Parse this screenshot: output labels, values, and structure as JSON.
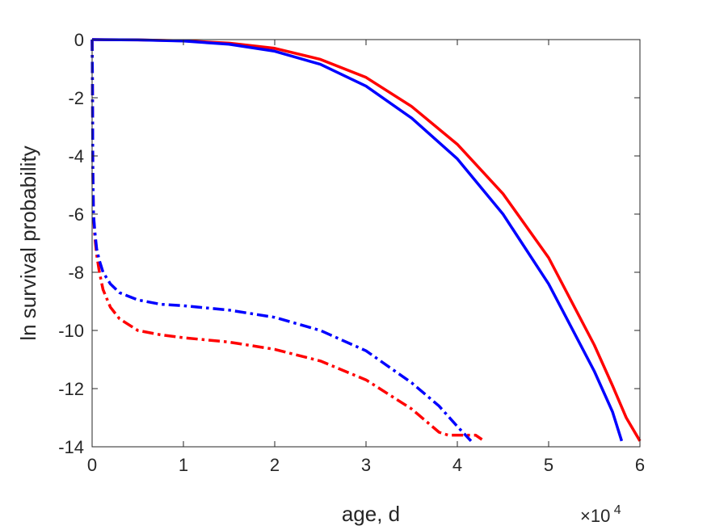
{
  "chart_data": {
    "type": "line",
    "xlabel": "age, d",
    "ylabel": "ln survival probability",
    "x_multiplier_label": {
      "base": "×10",
      "exponent": "4"
    },
    "xlim": [
      0,
      60000
    ],
    "ylim": [
      -14,
      0
    ],
    "xticks": [
      0,
      10000,
      20000,
      30000,
      40000,
      50000,
      60000
    ],
    "xtick_labels": [
      "0",
      "1",
      "2",
      "3",
      "4",
      "5",
      "6"
    ],
    "yticks": [
      0,
      -2,
      -4,
      -6,
      -8,
      -10,
      -12,
      -14
    ],
    "ytick_labels": [
      "0",
      "-2",
      "-4",
      "-6",
      "-8",
      "-10",
      "-12",
      "-14"
    ],
    "grid": false,
    "series": [
      {
        "color": "#ff0000",
        "style": "solid",
        "x": [
          0,
          200,
          5000,
          10000,
          15000,
          20000,
          25000,
          30000,
          35000,
          40000,
          45000,
          50000,
          55000,
          57000,
          58500,
          60000
        ],
        "y": [
          0,
          0,
          -0.01,
          -0.04,
          -0.12,
          -0.3,
          -0.68,
          -1.3,
          -2.3,
          -3.6,
          -5.3,
          -7.5,
          -10.5,
          -11.9,
          -13.0,
          -13.8
        ]
      },
      {
        "color": "#0000ff",
        "style": "solid",
        "x": [
          0,
          200,
          5000,
          10000,
          15000,
          20000,
          25000,
          30000,
          35000,
          40000,
          45000,
          50000,
          55000,
          57000,
          58000
        ],
        "y": [
          0,
          0,
          -0.01,
          -0.05,
          -0.16,
          -0.4,
          -0.85,
          -1.6,
          -2.7,
          -4.1,
          -6.0,
          -8.4,
          -11.4,
          -12.8,
          -13.8
        ]
      },
      {
        "color": "#ff0000",
        "style": "dash-dot",
        "x": [
          0,
          40,
          80,
          150,
          300,
          500,
          800,
          1200,
          2000,
          3000,
          5000,
          7500,
          10000,
          15000,
          20000,
          25000,
          30000,
          35000,
          38000,
          39000,
          41000,
          42000,
          42700
        ],
        "y": [
          0,
          -1.5,
          -4.5,
          -6.0,
          -6.8,
          -7.4,
          -8.0,
          -8.6,
          -9.2,
          -9.6,
          -10.0,
          -10.15,
          -10.25,
          -10.4,
          -10.65,
          -11.05,
          -11.7,
          -12.7,
          -13.5,
          -13.6,
          -13.6,
          -13.6,
          -13.75
        ]
      },
      {
        "color": "#0000ff",
        "style": "dash-dot",
        "x": [
          0,
          40,
          80,
          150,
          300,
          500,
          800,
          1200,
          2000,
          3000,
          5000,
          7500,
          10000,
          15000,
          20000,
          25000,
          30000,
          35000,
          38000,
          40000,
          41500
        ],
        "y": [
          0,
          -1.5,
          -4.5,
          -6.0,
          -6.6,
          -7.2,
          -7.6,
          -8.0,
          -8.4,
          -8.7,
          -8.95,
          -9.1,
          -9.15,
          -9.3,
          -9.55,
          -10.0,
          -10.7,
          -11.8,
          -12.6,
          -13.3,
          -13.8
        ]
      }
    ]
  }
}
